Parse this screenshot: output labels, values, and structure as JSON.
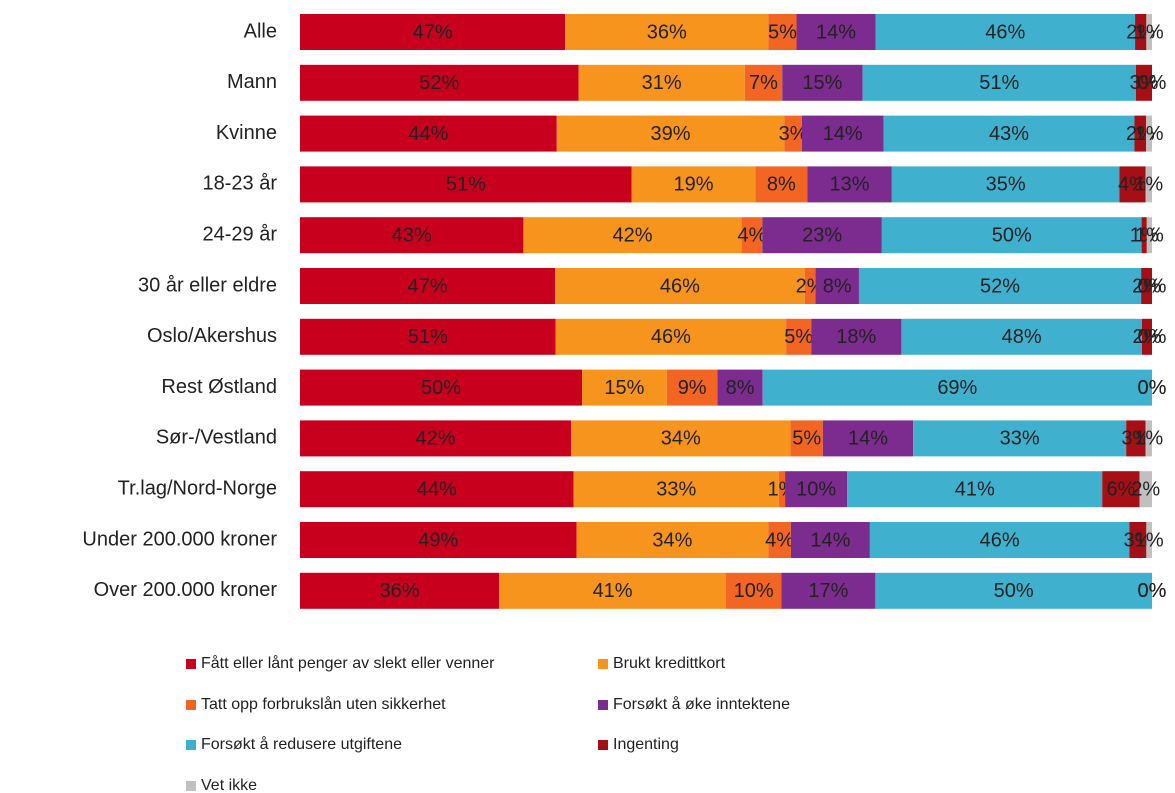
{
  "chart_data": {
    "type": "bar",
    "orientation": "horizontal",
    "stacked": "percent",
    "categories": [
      "Alle",
      "Mann",
      "Kvinne",
      "18-23 år",
      "24-29 år",
      "30  år eller eldre",
      "Oslo/Akershus",
      "Rest Østland",
      "Sør-/Vestland",
      "Tr.lag/Nord-Norge",
      "Under 200.000 kroner",
      "Over 200.000 kroner"
    ],
    "series": [
      {
        "name": "Fått eller lånt penger av slekt eller venner",
        "color": "#c8001e",
        "values": [
          47,
          52,
          44,
          51,
          43,
          47,
          51,
          50,
          42,
          44,
          49,
          36
        ],
        "value_labels": [
          "47%",
          "52%",
          "44%",
          "51%",
          "43%",
          "47%",
          "51%",
          "50%",
          "42%",
          "44%",
          "49%",
          "36%"
        ]
      },
      {
        "name": "Brukt kredittkort",
        "color": "#f7941d",
        "values": [
          36,
          31,
          39,
          19,
          42,
          46,
          46,
          15,
          34,
          33,
          34,
          41
        ],
        "value_labels": [
          "36%",
          "31%",
          "39%",
          "19%",
          "42%",
          "46%",
          "46%",
          "15%",
          "34%",
          "33%",
          "34%",
          "41%"
        ]
      },
      {
        "name": "Tatt opp forbrukslån uten sikkerhet",
        "color": "#f26522",
        "values": [
          5,
          7,
          3,
          8,
          4,
          2,
          5,
          9,
          5,
          1,
          4,
          10
        ],
        "value_labels": [
          "5%",
          "7%",
          "3%",
          "8%",
          "4%",
          "2%",
          "5%",
          "9%",
          "5%",
          "1%",
          "4%",
          "10%"
        ]
      },
      {
        "name": "Forsøkt å øke inntektene",
        "color": "#7b2c8e",
        "values": [
          14,
          15,
          14,
          13,
          23,
          8,
          18,
          8,
          14,
          10,
          14,
          17
        ],
        "value_labels": [
          "14%",
          "15%",
          "14%",
          "13%",
          "23%",
          "8%",
          "18%",
          "8%",
          "14%",
          "10%",
          "14%",
          "17%"
        ]
      },
      {
        "name": "Forsøkt å redusere utgiftene",
        "color": "#3fb1ce",
        "values": [
          46,
          51,
          43,
          35,
          50,
          52,
          48,
          69,
          33,
          41,
          46,
          50
        ],
        "value_labels": [
          "46%",
          "51%",
          "43%",
          "35%",
          "50%",
          "52%",
          "48%",
          "69%",
          "33%",
          "41%",
          "46%",
          "50%"
        ]
      },
      {
        "name": "Ingenting",
        "color": "#a50f15",
        "values": [
          2,
          3,
          2,
          4,
          1,
          2,
          2,
          0,
          3,
          6,
          3,
          0
        ],
        "value_labels": [
          "2%",
          "3%",
          "2%",
          "4%",
          "1%",
          "2%",
          "2%",
          "0%",
          "3%",
          "6%",
          "3%",
          "0%"
        ]
      },
      {
        "name": "Vet ikke",
        "color": "#c0c0c0",
        "values": [
          1,
          0,
          1,
          1,
          1,
          0,
          0,
          0,
          1,
          2,
          1,
          0
        ],
        "value_labels": [
          "1%",
          "0%",
          "1%",
          "1%",
          "1%",
          "0%",
          "0%",
          "0%",
          "1%",
          "2%",
          "1%",
          "0%"
        ]
      }
    ]
  }
}
